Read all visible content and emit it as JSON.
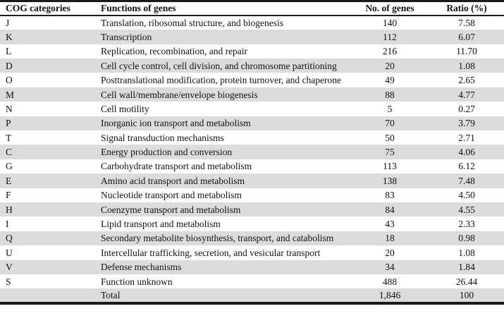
{
  "table": {
    "headers": {
      "category": "COG categories",
      "function": "Functions of genes",
      "genes": "No. of genes",
      "ratio": "Ratio (%)"
    },
    "rows": [
      {
        "category": "J",
        "function": "Translation, ribosomal structure, and biogenesis",
        "genes": "140",
        "ratio": "7.58"
      },
      {
        "category": "K",
        "function": "Transcription",
        "genes": "112",
        "ratio": "6.07"
      },
      {
        "category": "L",
        "function": "Replication, recombination, and repair",
        "genes": "216",
        "ratio": "11.70"
      },
      {
        "category": "D",
        "function": "Cell cycle control, cell division, and chromosome partitioning",
        "genes": "20",
        "ratio": "1.08"
      },
      {
        "category": "O",
        "function": "Posttranslational modification, protein turnover, and chaperone",
        "genes": "49",
        "ratio": "2.65"
      },
      {
        "category": "M",
        "function": "Cell wall/membrane/envelope biogenesis",
        "genes": "88",
        "ratio": "4.77"
      },
      {
        "category": "N",
        "function": "Cell motility",
        "genes": "5",
        "ratio": "0.27"
      },
      {
        "category": "P",
        "function": "Inorganic ion transport and metabolism",
        "genes": "70",
        "ratio": "3.79"
      },
      {
        "category": "T",
        "function": "Signal transduction mechanisms",
        "genes": "50",
        "ratio": "2.71"
      },
      {
        "category": "C",
        "function": "Energy production and conversion",
        "genes": "75",
        "ratio": "4.06"
      },
      {
        "category": "G",
        "function": "Carbohydrate transport and metabolism",
        "genes": "113",
        "ratio": "6.12"
      },
      {
        "category": "E",
        "function": "Amino acid transport and metabolism",
        "genes": "138",
        "ratio": "7.48"
      },
      {
        "category": "F",
        "function": "Nucleotide transport and metabolism",
        "genes": "83",
        "ratio": "4.50"
      },
      {
        "category": "H",
        "function": "Coenzyme transport and metabolism",
        "genes": "84",
        "ratio": "4.55"
      },
      {
        "category": "I",
        "function": "Lipid transport and metabolism",
        "genes": "43",
        "ratio": "2.33"
      },
      {
        "category": "Q",
        "function": "Secondary metabolite biosynthesis, transport, and catabolism",
        "genes": "18",
        "ratio": "0.98"
      },
      {
        "category": "U",
        "function": "Intercellular trafficking, secretion, and vesicular transport",
        "genes": "20",
        "ratio": "1.08"
      },
      {
        "category": "V",
        "function": "Defense mechanisms",
        "genes": "34",
        "ratio": "1.84"
      },
      {
        "category": "S",
        "function": "Function unknown",
        "genes": "488",
        "ratio": "26.44"
      },
      {
        "category": "",
        "function": "Total",
        "genes": "1,846",
        "ratio": "100"
      }
    ]
  },
  "colors": {
    "background": "#ffffff",
    "stripe": "#dcdcdc",
    "border": "#1a1a1a",
    "text": "#111111"
  }
}
